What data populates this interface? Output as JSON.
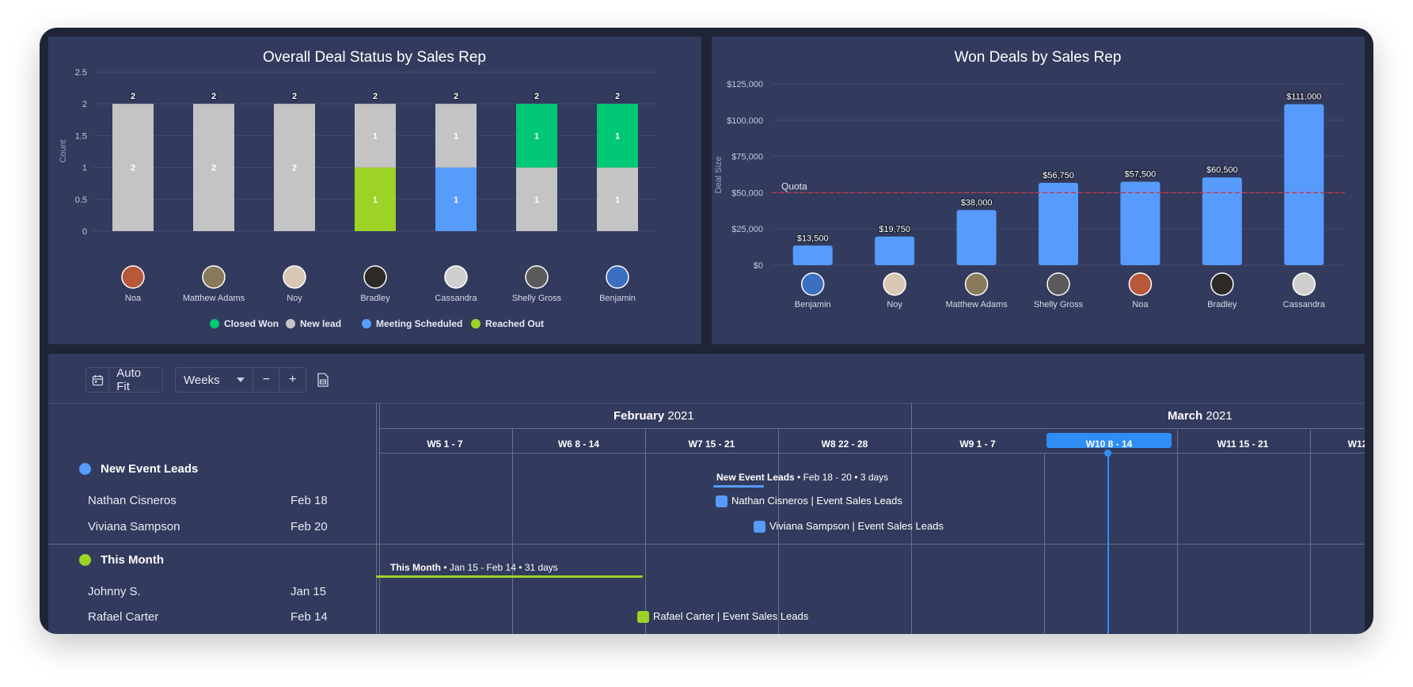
{
  "colors": {
    "closed_won": "#00c875",
    "new_lead": "#c4c4c4",
    "meeting_scheduled": "#579bfc",
    "reached_out": "#9cd326",
    "quota_line": "#c13a4a",
    "today_line": "#2f8ef5"
  },
  "chart_data": [
    {
      "type": "bar",
      "stacked": true,
      "title": "Overall Deal Status by Sales Rep",
      "ylabel": "Count",
      "ylim": [
        0,
        2.5
      ],
      "yticks": [
        "0",
        "0.5",
        "1",
        "1.5",
        "2",
        "2.5"
      ],
      "categories": [
        "Noa",
        "Matthew Adams",
        "Noy",
        "Bradley",
        "Cassandra",
        "Shelly Gross",
        "Benjamin"
      ],
      "totals": [
        2,
        2,
        2,
        2,
        2,
        2,
        2
      ],
      "series": [
        {
          "name": "Reached Out",
          "color": "#9cd326",
          "values": [
            0,
            0,
            0,
            1,
            0,
            0,
            0
          ]
        },
        {
          "name": "Meeting Scheduled",
          "color": "#579bfc",
          "values": [
            0,
            0,
            0,
            0,
            1,
            0,
            0
          ]
        },
        {
          "name": "New lead",
          "color": "#c4c4c4",
          "values": [
            2,
            2,
            2,
            1,
            1,
            1,
            1
          ]
        },
        {
          "name": "Closed Won",
          "color": "#00c875",
          "values": [
            0,
            0,
            0,
            0,
            0,
            1,
            1
          ]
        }
      ],
      "legend": [
        "Closed Won",
        "New lead",
        "Meeting Scheduled",
        "Reached Out"
      ],
      "legend_position": "bottom"
    },
    {
      "type": "bar",
      "title": "Won Deals by Sales Rep",
      "ylabel": "Deal Size",
      "ylim": [
        0,
        125000
      ],
      "yticks": [
        "$0",
        "$25,000",
        "$50,000",
        "$75,000",
        "$100,000",
        "$125,000"
      ],
      "categories": [
        "Benjamin",
        "Noy",
        "Matthew Adams",
        "Shelly Gross",
        "Noa",
        "Bradley",
        "Cassandra"
      ],
      "values": [
        13500,
        19750,
        38000,
        56750,
        57500,
        60500,
        111000
      ],
      "value_labels": [
        "$13,500",
        "$19,750",
        "$38,000",
        "$56,750",
        "$57,500",
        "$60,500",
        "$111,000"
      ],
      "color": "#579bfc",
      "quota": {
        "label": "Quota",
        "value": 50000
      }
    }
  ],
  "avatars": {
    "Noa": "#b8583a",
    "Matthew Adams": "#8a7a5c",
    "Noy": "#d9c7b3",
    "Bradley": "#2d2a28",
    "Cassandra": "#cfcfcf",
    "Shelly Gross": "#5a5a5a",
    "Benjamin": "#3b6fc2"
  },
  "toolbar": {
    "auto_fit": "Auto Fit",
    "scale": "Weeks",
    "zoom_out": "−",
    "zoom_in": "+"
  },
  "gantt": {
    "months": [
      {
        "name": "February",
        "year": "2021"
      },
      {
        "name": "March",
        "year": "2021"
      }
    ],
    "weeks": [
      {
        "label": "W5   1 - 7"
      },
      {
        "label": "W6   8 - 14"
      },
      {
        "label": "W7   15 - 21"
      },
      {
        "label": "W8   22 - 28"
      },
      {
        "label": "W9   1 - 7"
      },
      {
        "label": "W10   8 - 14",
        "current": true
      },
      {
        "label": "W11   15 - 21"
      },
      {
        "label": "W12"
      }
    ],
    "groups": [
      {
        "name": "New Event Leads",
        "color": "#579bfc",
        "summary_title": "New Event Leads",
        "summary_rest": " • Feb 18 - 20 • 3 days",
        "items": [
          {
            "name": "Nathan Cisneros",
            "date": "Feb 18",
            "bar_label": "Nathan Cisneros | Event Sales Leads"
          },
          {
            "name": "Viviana Sampson",
            "date": "Feb 20",
            "bar_label": "Viviana Sampson | Event Sales Leads"
          }
        ]
      },
      {
        "name": "This Month",
        "color": "#9cd326",
        "summary_title": "This Month",
        "summary_rest": " • Jan 15 - Feb 14 • 31 days",
        "items": [
          {
            "name": "Johnny S.",
            "date": "Jan 15",
            "bar_label": ""
          },
          {
            "name": "Rafael Carter",
            "date": "Feb 14",
            "bar_label": "Rafael Carter | Event Sales Leads"
          }
        ]
      }
    ]
  }
}
